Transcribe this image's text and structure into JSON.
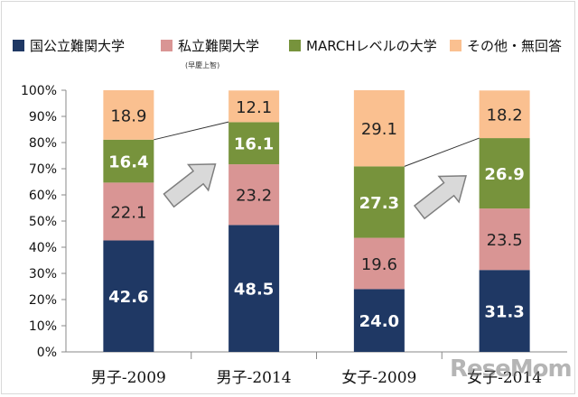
{
  "legend": {
    "items": [
      {
        "label": "国公立難関大学",
        "color": "#1f3864"
      },
      {
        "label": "私立難関大学",
        "color": "#d99594"
      },
      {
        "label": "MARCHレベルの大学",
        "color": "#77933c"
      },
      {
        "label": "その他・無回答",
        "color": "#fac090"
      }
    ],
    "private_note": "(早慶上智)"
  },
  "watermark": "ReseMom",
  "chart_data": {
    "type": "bar",
    "stacked": true,
    "categories": [
      "男子-2009",
      "男子-2014",
      "女子-2009",
      "女子-2014"
    ],
    "series": [
      {
        "name": "国公立難関大学",
        "values": [
          42.6,
          48.5,
          24.0,
          31.3
        ],
        "color": "#1f3864",
        "label_color": "#ffffff",
        "label_bold": true
      },
      {
        "name": "私立難関大学",
        "values": [
          22.1,
          23.2,
          19.6,
          23.5
        ],
        "color": "#d99594",
        "label_color": "#222222",
        "label_bold": false
      },
      {
        "name": "MARCHレベルの大学",
        "values": [
          16.4,
          16.1,
          27.3,
          26.9
        ],
        "color": "#77933c",
        "label_color": "#ffffff",
        "label_bold": true
      },
      {
        "name": "その他・無回答",
        "values": [
          18.9,
          12.1,
          29.1,
          18.2
        ],
        "color": "#fac090",
        "label_color": "#222222",
        "label_bold": false
      }
    ],
    "ylim": [
      0,
      100
    ],
    "yticks": [
      "0%",
      "10%",
      "20%",
      "30%",
      "40%",
      "50%",
      "60%",
      "70%",
      "80%",
      "90%",
      "100%"
    ],
    "grid": false,
    "legend_position": "top",
    "annotations": [
      {
        "type": "connector",
        "from_category": "男子-2009",
        "to_category": "男子-2014",
        "level_from": 81.1,
        "level_to": 87.9
      },
      {
        "type": "connector",
        "from_category": "女子-2009",
        "to_category": "女子-2014",
        "level_from": 70.9,
        "level_to": 81.7
      },
      {
        "type": "arrow",
        "between": [
          "男子-2009",
          "男子-2014"
        ]
      },
      {
        "type": "arrow",
        "between": [
          "女子-2009",
          "女子-2014"
        ]
      }
    ]
  }
}
